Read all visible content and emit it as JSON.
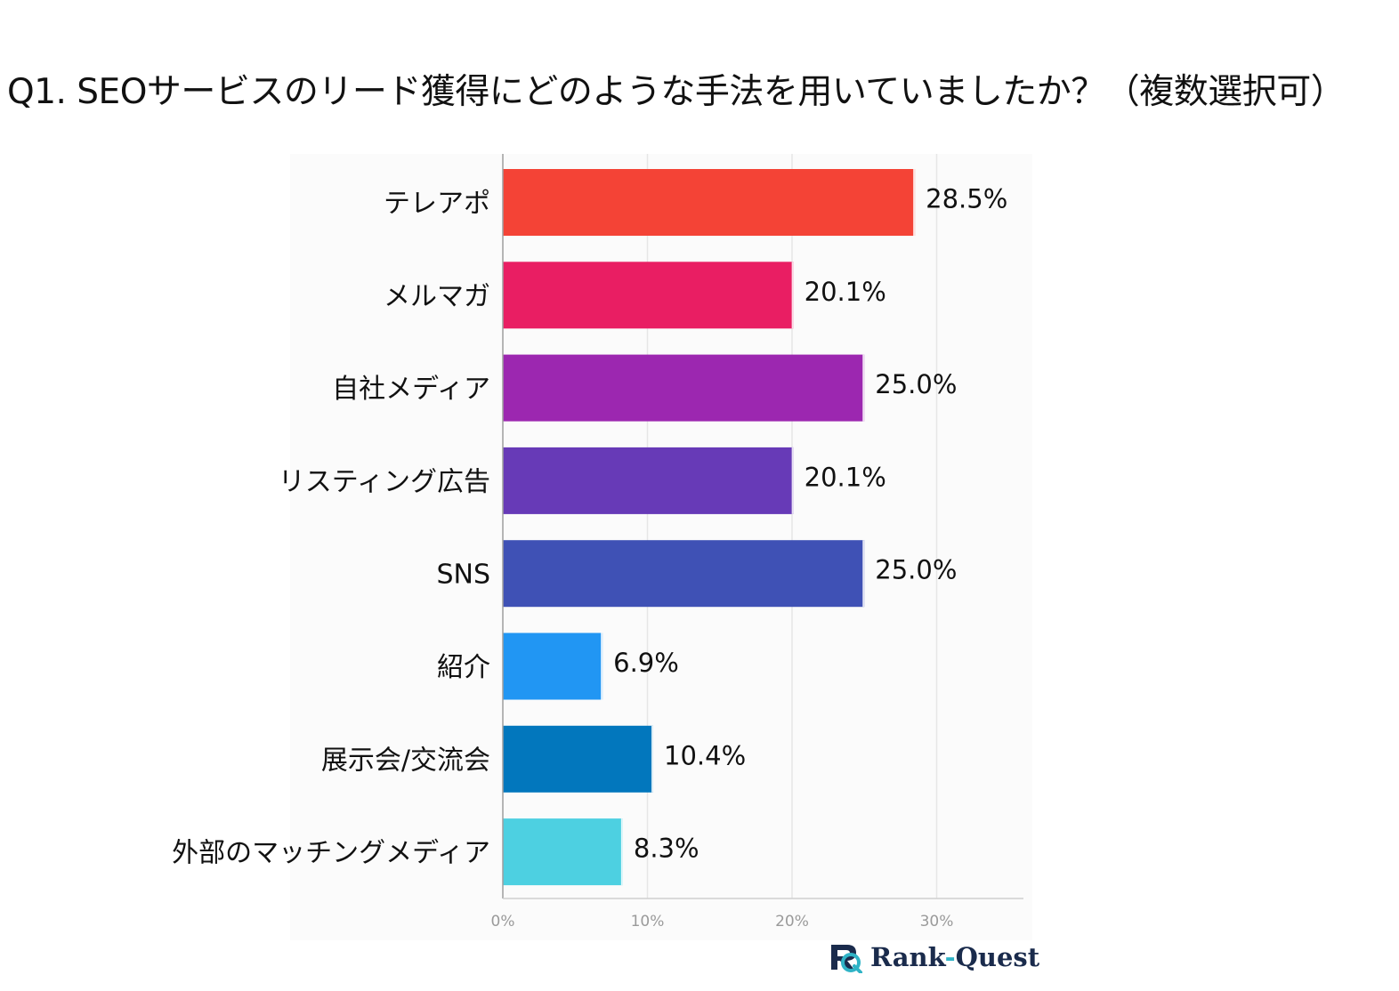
{
  "title": "Q1. SEOサービスのリード獲得にどのような手法を用いていましたか？（複数選択可）",
  "brand": {
    "name_part1": "Rank",
    "dash": "-",
    "name_part2": "Quest"
  },
  "chart_data": {
    "type": "bar",
    "orientation": "horizontal",
    "title": "Q1. SEOサービスのリード獲得にどのような手法を用いていましたか？（複数選択可）",
    "categories": [
      "テレアポ",
      "メルマガ",
      "自社メディア",
      "リスティング広告",
      "SNS",
      "紹介",
      "展示会/交流会",
      "外部のマッチングメディア"
    ],
    "values": [
      28.5,
      20.1,
      25.0,
      20.1,
      25.0,
      6.9,
      10.4,
      8.3
    ],
    "value_labels": [
      "28.5%",
      "20.1%",
      "25.0%",
      "20.1%",
      "25.0%",
      "6.9%",
      "10.4%",
      "8.3%"
    ],
    "colors": [
      "#f44336",
      "#e91e63",
      "#9c27b0",
      "#673ab7",
      "#3f51b5",
      "#2196f3",
      "#0277bd",
      "#4dd0e1"
    ],
    "xlim": [
      0,
      36
    ],
    "ticks": [
      0,
      10,
      20,
      30
    ],
    "tick_labels": [
      "0%",
      "10%",
      "20%",
      "30%"
    ],
    "xlabel": "",
    "ylabel": "",
    "grid": true
  }
}
